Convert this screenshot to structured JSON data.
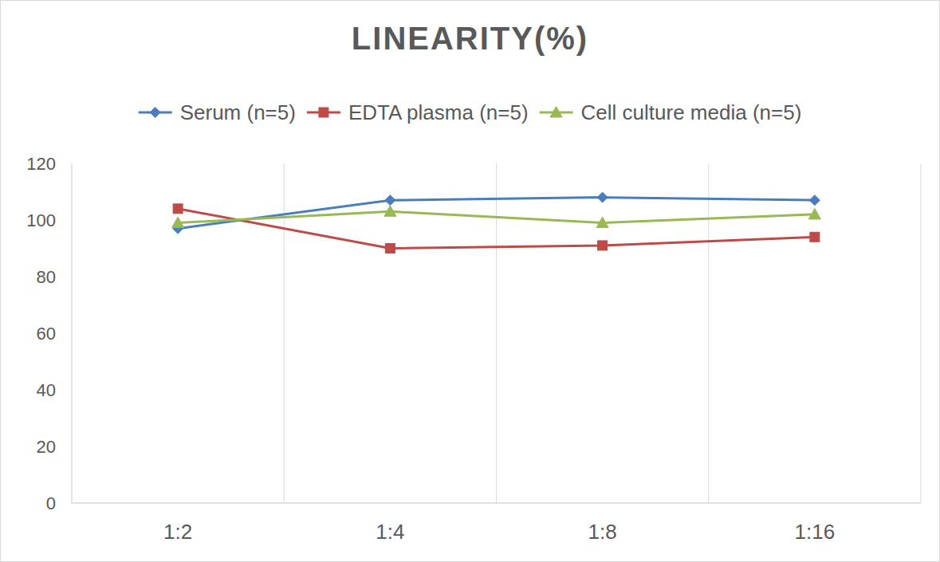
{
  "chart_data": {
    "type": "line",
    "title": "LINEARITY(%)",
    "categories": [
      "1:2",
      "1:4",
      "1:8",
      "1:16"
    ],
    "series": [
      {
        "name": "Serum (n=5)",
        "color": "#4a7ebb",
        "marker": "diamond",
        "values": [
          97,
          107,
          108,
          107
        ]
      },
      {
        "name": "EDTA plasma (n=5)",
        "color": "#be4b48",
        "marker": "square",
        "values": [
          104,
          90,
          91,
          94
        ]
      },
      {
        "name": "Cell culture media (n=5)",
        "color": "#98b954",
        "marker": "triangle",
        "values": [
          99,
          103,
          99,
          102
        ]
      }
    ],
    "ylim": [
      0,
      120
    ],
    "yticks": [
      0,
      20,
      40,
      60,
      80,
      100,
      120
    ],
    "grid": true,
    "legend": "top"
  }
}
